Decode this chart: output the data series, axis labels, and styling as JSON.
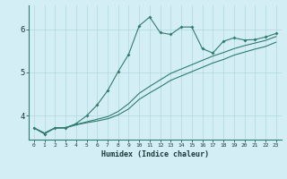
{
  "xlabel": "Humidex (Indice chaleur)",
  "background_color": "#d4eef5",
  "line_color": "#2e7d6e",
  "grid_color": "#b0d8e0",
  "axis_color": "#2e7d6e",
  "xlim": [
    -0.5,
    23.5
  ],
  "ylim": [
    3.45,
    6.55
  ],
  "yticks": [
    4,
    5,
    6
  ],
  "xticks": [
    0,
    1,
    2,
    3,
    4,
    5,
    6,
    7,
    8,
    9,
    10,
    11,
    12,
    13,
    14,
    15,
    16,
    17,
    18,
    19,
    20,
    21,
    22,
    23
  ],
  "line1_x": [
    0,
    1,
    2,
    3,
    4,
    5,
    6,
    7,
    8,
    9,
    10,
    11,
    12,
    13,
    14,
    15,
    16,
    17,
    18,
    19,
    20,
    21,
    22,
    23
  ],
  "line1_y": [
    3.72,
    3.58,
    3.72,
    3.72,
    3.82,
    4.0,
    4.25,
    4.58,
    5.02,
    5.42,
    6.08,
    6.28,
    5.92,
    5.88,
    6.05,
    6.05,
    5.55,
    5.45,
    5.72,
    5.8,
    5.75,
    5.76,
    5.82,
    5.9
  ],
  "line2_x": [
    0,
    1,
    2,
    3,
    4,
    5,
    6,
    7,
    8,
    9,
    10,
    11,
    12,
    13,
    14,
    15,
    16,
    17,
    18,
    19,
    20,
    21,
    22,
    23
  ],
  "line2_y": [
    3.72,
    3.6,
    3.72,
    3.73,
    3.8,
    3.86,
    3.92,
    3.98,
    4.1,
    4.28,
    4.52,
    4.68,
    4.83,
    4.98,
    5.08,
    5.18,
    5.28,
    5.38,
    5.46,
    5.55,
    5.62,
    5.68,
    5.74,
    5.83
  ],
  "line3_x": [
    0,
    1,
    2,
    3,
    4,
    5,
    6,
    7,
    8,
    9,
    10,
    11,
    12,
    13,
    14,
    15,
    16,
    17,
    18,
    19,
    20,
    21,
    22,
    23
  ],
  "line3_y": [
    3.72,
    3.6,
    3.72,
    3.72,
    3.79,
    3.84,
    3.88,
    3.93,
    4.02,
    4.16,
    4.38,
    4.53,
    4.67,
    4.82,
    4.92,
    5.02,
    5.12,
    5.22,
    5.3,
    5.4,
    5.47,
    5.54,
    5.6,
    5.7
  ]
}
